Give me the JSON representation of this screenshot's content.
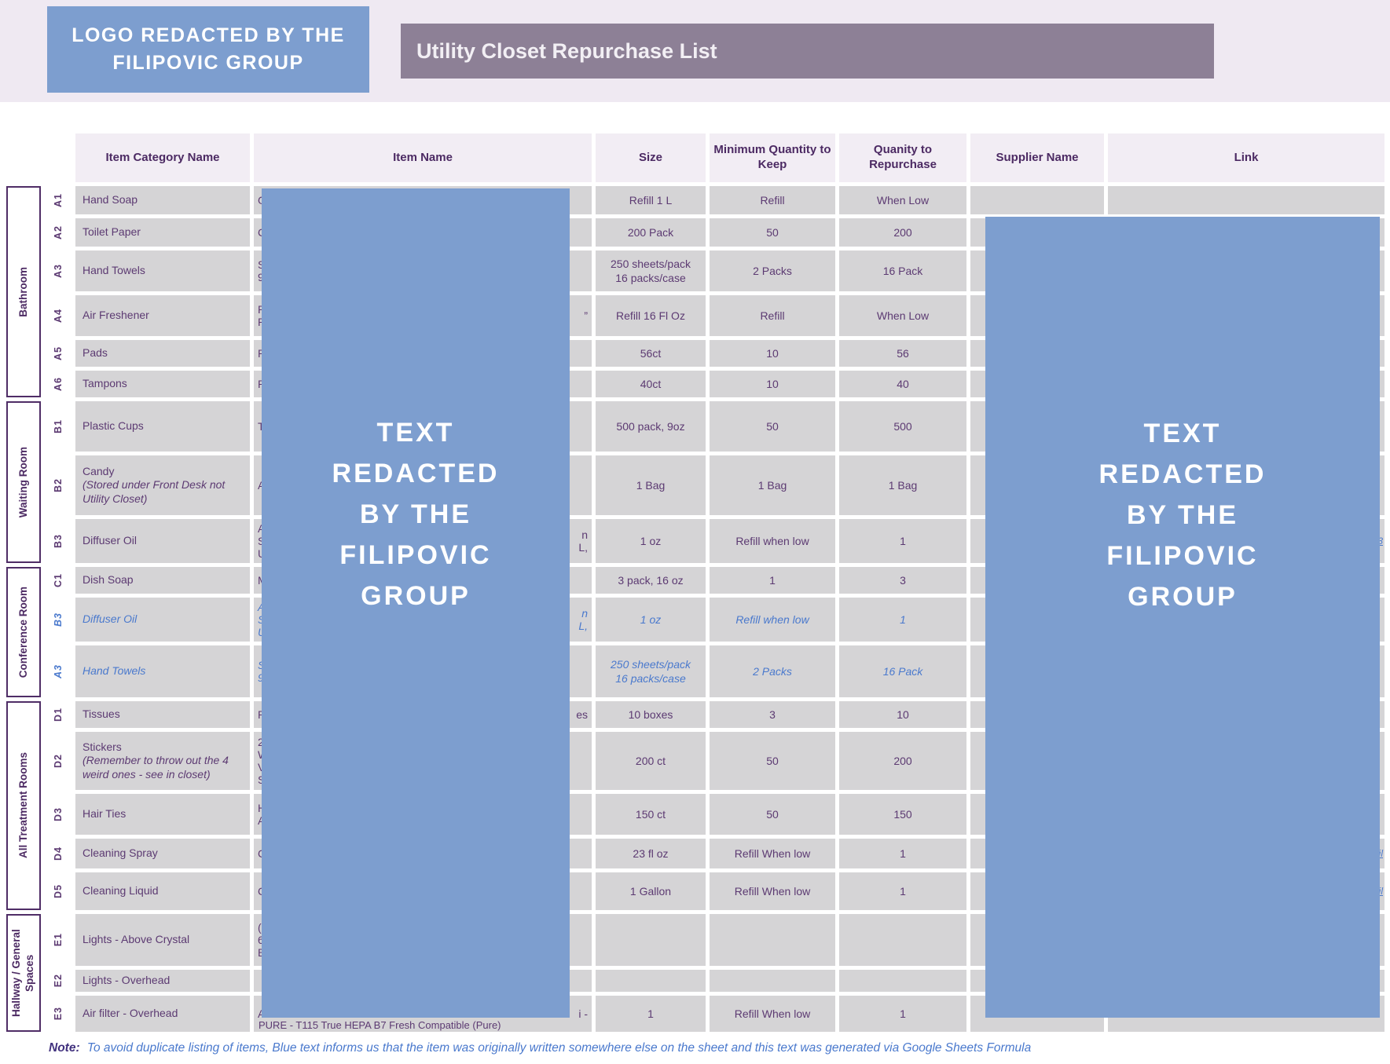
{
  "header": {
    "logo_text": "LOGO REDACTED BY THE FILIPOVIC GROUP",
    "title": "Utility Closet Repurchase List"
  },
  "redaction": {
    "text": "TEXT\nREDACTED\nBY THE\nFILIPOVIC\nGROUP"
  },
  "table": {
    "columns": [
      "Item Category Name",
      "Item Name",
      "Size",
      "Minimum Quantity to Keep",
      "Quanity to Repurchase",
      "Supplier Name",
      "Link"
    ],
    "groups": [
      {
        "label": "Bathroom",
        "rows": 6
      },
      {
        "label": "Waiting Room",
        "rows": 3
      },
      {
        "label": "Conference Room",
        "rows": 3
      },
      {
        "label": "All Treatment Rooms",
        "rows": 5
      },
      {
        "label": "Hallway / General Spaces",
        "rows": 3
      }
    ],
    "rows": [
      {
        "id": "A1",
        "category": "Hand Soap",
        "size": "Refill 1 L",
        "min": "Refill",
        "qty": "When Low",
        "fl": [
          "G"
        ]
      },
      {
        "id": "A2",
        "category": "Toilet Paper",
        "size": "200 Pack",
        "min": "50",
        "qty": "200",
        "fl": [
          "C"
        ]
      },
      {
        "id": "A3",
        "category": "Hand Towels",
        "size": "250 sheets/pack\n16 packs/case",
        "min": "2 Packs",
        "qty": "16 Pack",
        "fl": [
          "S",
          "9"
        ]
      },
      {
        "id": "A4",
        "category": "Air Freshener",
        "size": "Refill 16 Fl Oz",
        "min": "Refill",
        "qty": "When Low",
        "fl": [
          "P",
          "R"
        ],
        "fr": [
          "”"
        ]
      },
      {
        "id": "A5",
        "category": "Pads",
        "size": "56ct",
        "min": "10",
        "qty": "56",
        "fl": [
          "R"
        ]
      },
      {
        "id": "A6",
        "category": "Tampons",
        "size": "40ct",
        "min": "10",
        "qty": "40",
        "fl": [
          "R"
        ]
      },
      {
        "id": "B1",
        "category": "Plastic Cups",
        "size": "500 pack, 9oz",
        "min": "50",
        "qty": "500",
        "fl": [
          "T"
        ]
      },
      {
        "id": "B2",
        "category": "Candy",
        "cat_note": "(Stored under Front Desk not Utility Closet)",
        "size": "1 Bag",
        "min": "1 Bag",
        "qty": "1 Bag",
        "fl": [
          "A"
        ]
      },
      {
        "id": "B3",
        "category": "Diffuser Oil",
        "size": "1 oz",
        "min": "Refill when low",
        "qty": "1",
        "fl": [
          "A",
          "S",
          "U"
        ],
        "fr": [
          "n",
          "L,"
        ],
        "link_frag": "3"
      },
      {
        "id": "C1",
        "category": "Dish Soap",
        "size": "3 pack, 16 oz",
        "min": "1",
        "qty": "3",
        "fl": [
          "M"
        ]
      },
      {
        "id": "B3",
        "blue": true,
        "category": "Diffuser Oil",
        "size": "1 oz",
        "min": "Refill when low",
        "qty": "1",
        "fl": [
          "A",
          "S",
          "U"
        ],
        "fr": [
          "n",
          "L,"
        ]
      },
      {
        "id": "A3",
        "blue": true,
        "category": "Hand Towels",
        "size": "250 sheets/pack\n16 packs/case",
        "min": "2 Packs",
        "qty": "16 Pack",
        "fl": [
          "S",
          "9"
        ]
      },
      {
        "id": "D1",
        "category": "Tissues",
        "size": "10 boxes",
        "min": "3",
        "qty": "10",
        "fl": [
          "P"
        ],
        "fr": [
          "es"
        ]
      },
      {
        "id": "D2",
        "category": "Stickers",
        "cat_note": "(Remember to throw out the 4 weird ones - see in closet)",
        "size": "200 ct",
        "min": "50",
        "qty": "200",
        "fl": [
          "2",
          "W",
          "V",
          "S"
        ]
      },
      {
        "id": "D3",
        "category": "Hair Ties",
        "size": "150 ct",
        "min": "50",
        "qty": "150",
        "fl": [
          "H",
          "A"
        ]
      },
      {
        "id": "D4",
        "category": "Cleaning Spray",
        "size": "23 fl oz",
        "min": "Refill When low",
        "qty": "1",
        "fl": [
          "C"
        ],
        "link_frag": "il"
      },
      {
        "id": "D5",
        "category": "Cleaning Liquid",
        "size": "1 Gallon",
        "min": "Refill When low",
        "qty": "1",
        "fl": [
          "C"
        ],
        "link_frag": "il"
      },
      {
        "id": "E1",
        "category": "Lights - Above Crystal",
        "size": "",
        "min": "",
        "qty": "",
        "fl": [
          "(",
          "6",
          "B"
        ]
      },
      {
        "id": "E2",
        "category": "Lights - Overhead",
        "size": "",
        "min": "",
        "qty": "",
        "fl": []
      },
      {
        "id": "E3",
        "category": "Air filter - Overhead",
        "size": "1",
        "min": "Refill When low",
        "qty": "1",
        "fl": [
          "A"
        ],
        "fr": [
          "i -"
        ],
        "extra": "PURE - T115 True HEPA B7 Fresh Compatible (Pure)"
      }
    ]
  },
  "note": {
    "label": "Note:",
    "text": "To avoid duplicate listing of items, Blue text informs us that the item was originally written somewhere else on the sheet and this text was generated via Google Sheets Formula"
  },
  "colors": {
    "redaction_blue": "#7D9ECF",
    "title_bar": "#8D8096",
    "band_bg": "#EFE9F2",
    "header_cell_bg": "#F2EDF4",
    "cell_bg": "#D5D4D6",
    "header_text": "#4C2A63",
    "cell_text": "#5C3A72",
    "formula_blue": "#4A79CD"
  }
}
